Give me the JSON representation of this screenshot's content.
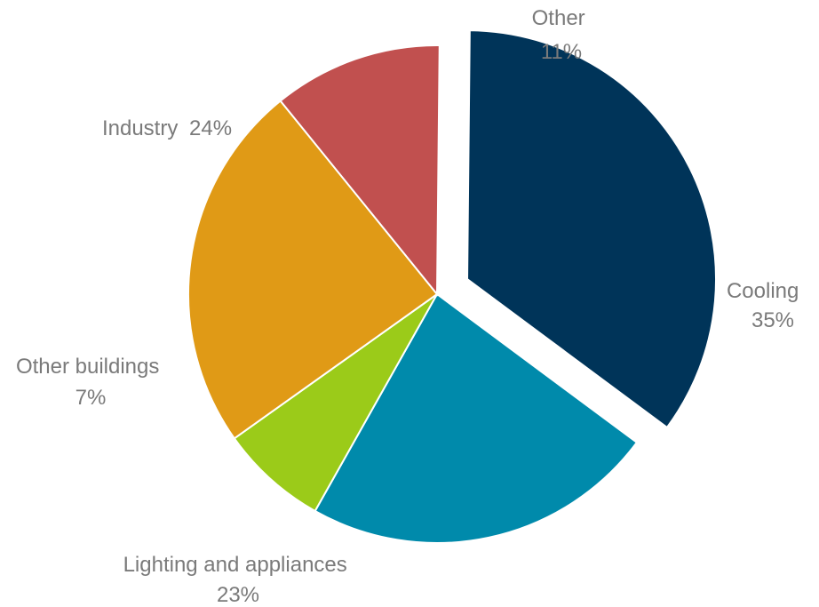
{
  "chart_data": {
    "type": "pie",
    "title": "",
    "slices": [
      {
        "label": "Cooling",
        "value": 35,
        "value_label": "35%",
        "color": "#003459",
        "exploded": true
      },
      {
        "label": "Lighting and appliances",
        "value": 23,
        "value_label": "23%",
        "color": "#008aab",
        "exploded": false
      },
      {
        "label": "Other buildings",
        "value": 7,
        "value_label": "7%",
        "color": "#9bcb19",
        "exploded": false
      },
      {
        "label": "Industry",
        "value": 24,
        "value_label": "24%",
        "color": "#e09a16",
        "exploded": false
      },
      {
        "label": "Other",
        "value": 11,
        "value_label": "11%",
        "color": "#c1504f",
        "exploded": false
      }
    ],
    "start": "12 o'clock",
    "direction": "clockwise",
    "data_labels": "outside"
  }
}
